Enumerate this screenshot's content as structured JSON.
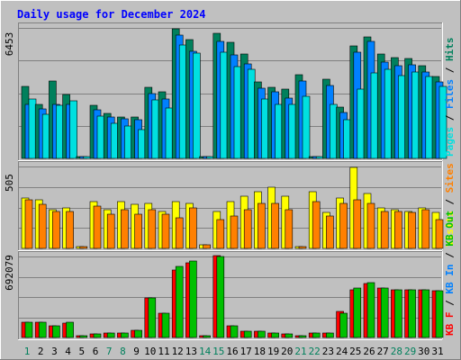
{
  "chart_data": {
    "type": "bar",
    "title": "Daily usage for December 2024",
    "days": [
      "1",
      "2",
      "3",
      "4",
      "5",
      "6",
      "7",
      "8",
      "9",
      "10",
      "11",
      "12",
      "13",
      "14",
      "15",
      "16",
      "17",
      "18",
      "19",
      "20",
      "21",
      "22",
      "23",
      "24",
      "25",
      "26",
      "27",
      "28",
      "29",
      "30",
      "31"
    ],
    "weekend_days": [
      "1",
      "7",
      "8",
      "14",
      "15",
      "21",
      "22",
      "28",
      "29"
    ],
    "panels": [
      {
        "id": "hits",
        "scale_label": "6453",
        "scale_value": 6453,
        "side_labels": [
          {
            "text": "Pages",
            "color": "#00E0E0"
          },
          {
            "text": "Files",
            "color": "#0080FF"
          },
          {
            "text": "Hits",
            "color": "#00805C"
          }
        ],
        "series": [
          {
            "name": "Hits",
            "color": "#00805C",
            "values": [
              3570,
              2690,
              3830,
              3160,
              0,
              2630,
              2220,
              2050,
              2050,
              3530,
              3300,
              6400,
              5890,
              0,
              6200,
              5720,
              5160,
              3770,
              3520,
              3440,
              4160,
              0,
              3900,
              2540,
              5560,
              6000,
              5150,
              5000,
              4960,
              4600,
              4040
            ]
          },
          {
            "name": "Files",
            "color": "#0080FF",
            "values": [
              2650,
              2460,
              2680,
              2660,
              0,
              2390,
              2060,
              1940,
              1900,
              3220,
              2920,
              6080,
              5280,
              0,
              5800,
              5130,
              4680,
              3470,
              3300,
              3000,
              3820,
              0,
              3600,
              2290,
              5260,
              5800,
              4760,
              4600,
              4630,
              4280,
              3800
            ]
          },
          {
            "name": "Pages",
            "color": "#00E0E0",
            "values": [
              2920,
              2180,
              2610,
              2860,
              0,
              2110,
              1740,
              1620,
              1440,
              2900,
              2480,
              5600,
              5200,
              0,
              5260,
              4540,
              4410,
              2930,
              2680,
              2660,
              3050,
              0,
              2660,
              1900,
              3440,
              4240,
              4420,
              4110,
              4270,
              4030,
              3570
            ]
          }
        ]
      },
      {
        "id": "visits",
        "scale_label": "505",
        "scale_value": 505,
        "side_labels": [
          {
            "text": "Visits",
            "color": "#FFFF00"
          },
          {
            "text": "Sites",
            "color": "#FF8000"
          }
        ],
        "series": [
          {
            "name": "Visits",
            "color": "#FFFF00",
            "values": [
              310,
              300,
              240,
              250,
              0,
              290,
              240,
              290,
              270,
              280,
              230,
              290,
              280,
              20,
              230,
              290,
              320,
              350,
              380,
              320,
              0,
              350,
              220,
              310,
              500,
              340,
              250,
              240,
              230,
              250,
              220
            ]
          },
          {
            "name": "Sites",
            "color": "#FF8000",
            "values": [
              300,
              270,
              230,
              230,
              0,
              260,
              210,
              240,
              210,
              240,
              210,
              190,
              250,
              20,
              180,
              200,
              240,
              280,
              280,
              240,
              0,
              290,
              200,
              280,
              300,
              280,
              230,
              230,
              220,
              240,
              180
            ]
          }
        ]
      },
      {
        "id": "kbytes",
        "scale_label": "692079",
        "scale_value": 692079,
        "side_labels": [
          {
            "text": "KB F",
            "color": "#FF0000"
          },
          {
            "text": "KB In",
            "color": "#0080FF"
          },
          {
            "text": "KB Out",
            "color": "#00C000"
          }
        ],
        "series": [
          {
            "name": "KB F",
            "color": "#FF0000",
            "values": [
              130000,
              130000,
              100000,
              120000,
              0,
              30000,
              40000,
              40000,
              60000,
              340000,
              210000,
              580000,
              640000,
              0,
              700000,
              100000,
              50000,
              50000,
              40000,
              30000,
              0,
              40000,
              40000,
              220000,
              410000,
              460000,
              420000,
              410000,
              410000,
              410000,
              400000
            ]
          },
          {
            "name": "KB Out",
            "color": "#00C000",
            "values": [
              130000,
              130000,
              100000,
              130000,
              0,
              30000,
              40000,
              40000,
              60000,
              340000,
              210000,
              610000,
              650000,
              0,
              690000,
              100000,
              50000,
              50000,
              40000,
              30000,
              0,
              40000,
              40000,
              210000,
              420000,
              470000,
              420000,
              410000,
              410000,
              410000,
              400000
            ]
          }
        ]
      }
    ]
  }
}
